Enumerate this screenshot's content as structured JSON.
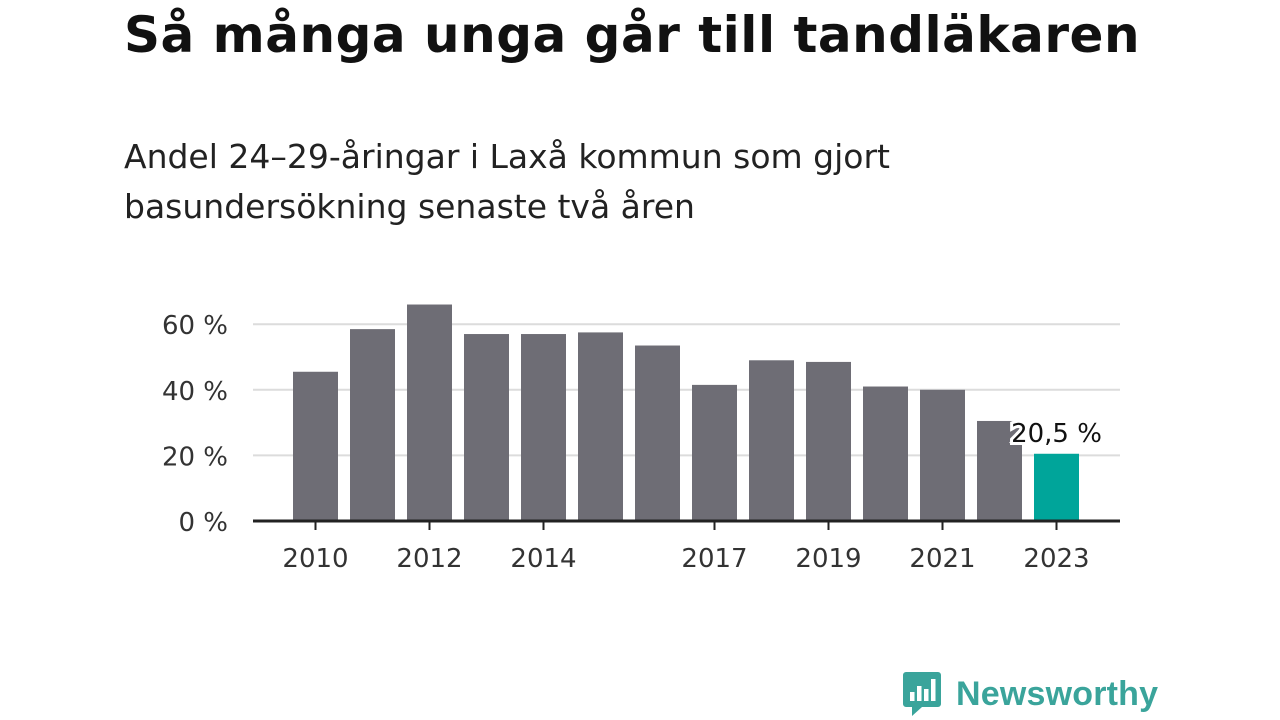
{
  "header": {
    "title": "Så många unga går till tandläkaren",
    "subtitle_line1": "Andel 24–29-åringar i Laxå kommun som gjort",
    "subtitle_line2": "basundersökning senaste två åren"
  },
  "colors": {
    "bar": "#6e6d75",
    "highlight": "#00a59a",
    "grid": "#dcdcdc",
    "axis": "#222222",
    "brand": "#3aa49b"
  },
  "chart_data": {
    "type": "bar",
    "categories": [
      "2010",
      "2011",
      "2012",
      "2013",
      "2014",
      "2015",
      "2016",
      "2017",
      "2018",
      "2019",
      "2020",
      "2021",
      "2022",
      "2023"
    ],
    "values": [
      45.5,
      58.5,
      66,
      57,
      57,
      57.5,
      53.5,
      41.5,
      49,
      48.5,
      41,
      40,
      30.5,
      20.5
    ],
    "highlight_index": 13,
    "value_label": "20,5 %",
    "x_tick_labels": [
      "2010",
      "2012",
      "2014",
      "2017",
      "2019",
      "2021",
      "2023"
    ],
    "y_ticks": [
      0,
      20,
      40,
      60
    ],
    "y_tick_labels": [
      "0 %",
      "20 %",
      "40 %",
      "60 %"
    ],
    "ylim": [
      0,
      70
    ],
    "grid": true,
    "legend": "none"
  },
  "brand": {
    "name": "Newsworthy",
    "icon": "bar-chart-speech-bubble-icon"
  }
}
